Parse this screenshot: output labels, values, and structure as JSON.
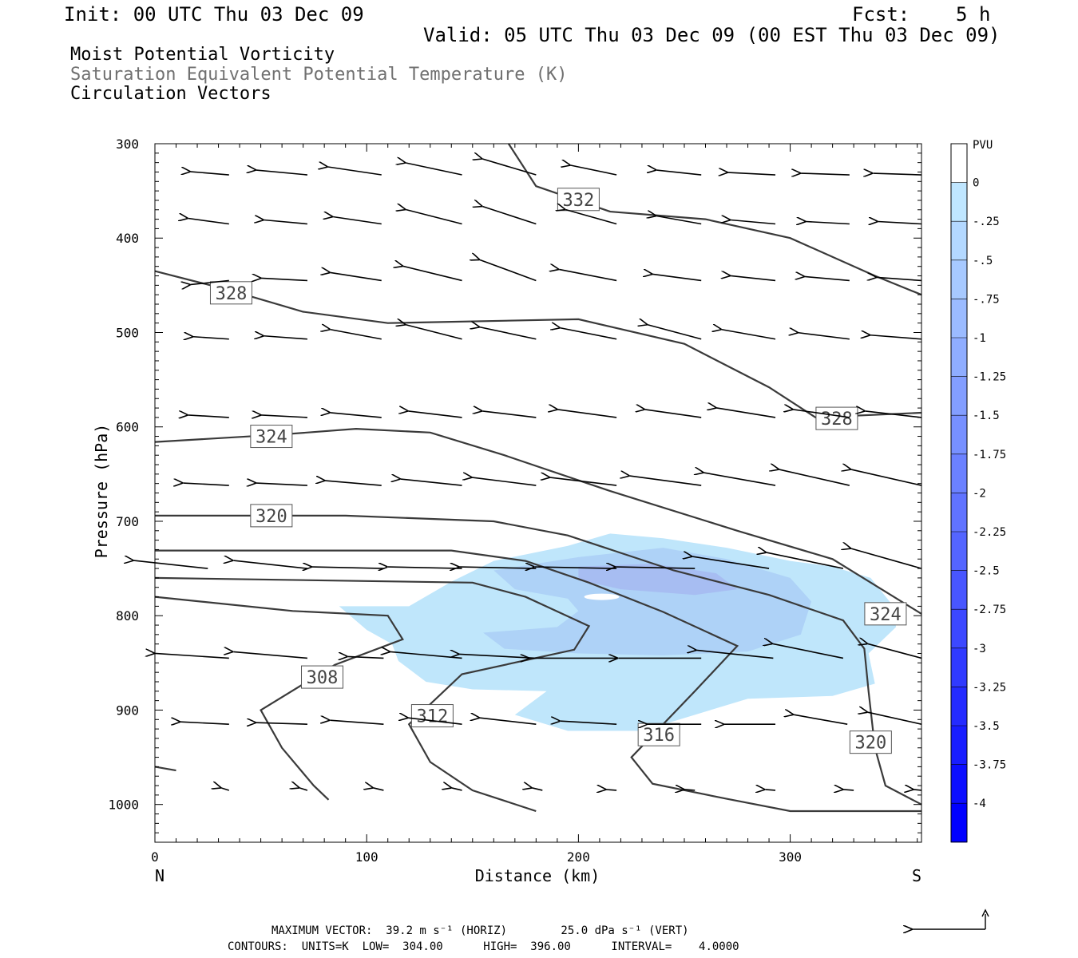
{
  "header": {
    "init": "Init: 00 UTC Thu 03 Dec 09",
    "fcst": "Fcst:    5 h",
    "valid": "Valid: 05 UTC Thu 03 Dec 09 (00 EST Thu 03 Dec 09)",
    "fields": [
      "Moist Potential Vorticity",
      "Saturation Equivalent Potential Temperature (K)",
      "Circulation Vectors"
    ]
  },
  "footer": {
    "line1": "MAXIMUM VECTOR:  39.2 m s⁻¹ (HORIZ)        25.0 dPa s⁻¹ (VERT)",
    "line2": "CONTOURS:  UNITS=K  LOW=  304.00      HIGH=  396.00      INTERVAL=    4.0000"
  },
  "chart_data": {
    "type": "cross-section",
    "xlabel": "Distance (km)",
    "ylabel": "Pressure (hPa)",
    "xlim": [
      0,
      362
    ],
    "ylim": [
      1040,
      300
    ],
    "x_ticks": [
      "0",
      "100",
      "200",
      "300"
    ],
    "y_ticks": [
      "300",
      "400",
      "500",
      "600",
      "700",
      "800",
      "900",
      "1000"
    ],
    "x_end_labels": {
      "left": "N",
      "right": "S"
    },
    "colorbar": {
      "unit": "PVU",
      "labels": [
        "0",
        "-.25",
        "-.5",
        "-.75",
        "-1",
        "-1.25",
        "-1.5",
        "-1.75",
        "-2",
        "-2.25",
        "-2.5",
        "-2.75",
        "-3",
        "-3.25",
        "-3.5",
        "-3.75",
        "-4"
      ]
    },
    "theta_contours": [
      {
        "label": "332",
        "points": [
          [
            167,
            300
          ],
          [
            180,
            345
          ],
          [
            215,
            372
          ],
          [
            260,
            380
          ],
          [
            300,
            400
          ],
          [
            340,
            440
          ],
          [
            362,
            460
          ]
        ]
      },
      {
        "label": "328",
        "points": [
          [
            0,
            435
          ],
          [
            35,
            455
          ],
          [
            70,
            478
          ],
          [
            110,
            490
          ],
          [
            200,
            486
          ],
          [
            250,
            512
          ],
          [
            290,
            558
          ],
          [
            312,
            590
          ],
          [
            362,
            585
          ]
        ]
      },
      {
        "label": "324",
        "points": [
          [
            0,
            616
          ],
          [
            60,
            608
          ],
          [
            95,
            602
          ],
          [
            130,
            606
          ],
          [
            165,
            630
          ],
          [
            215,
            668
          ],
          [
            275,
            710
          ],
          [
            320,
            740
          ],
          [
            362,
            798
          ]
        ]
      },
      {
        "label": "320",
        "points": [
          [
            0,
            694
          ],
          [
            90,
            694
          ],
          [
            160,
            700
          ],
          [
            195,
            715
          ],
          [
            245,
            752
          ],
          [
            290,
            778
          ],
          [
            325,
            805
          ],
          [
            335,
            835
          ],
          [
            337,
            880
          ],
          [
            340,
            940
          ],
          [
            345,
            980
          ],
          [
            362,
            1000
          ]
        ]
      },
      {
        "label": "316",
        "points": [
          [
            0,
            731
          ],
          [
            140,
            731
          ],
          [
            175,
            742
          ],
          [
            205,
            765
          ],
          [
            240,
            796
          ],
          [
            275,
            832
          ],
          [
            255,
            880
          ],
          [
            225,
            950
          ],
          [
            235,
            978
          ],
          [
            270,
            994
          ],
          [
            300,
            1007
          ],
          [
            362,
            1007
          ]
        ]
      },
      {
        "label": "312",
        "points": [
          [
            0,
            760
          ],
          [
            150,
            765
          ],
          [
            175,
            780
          ],
          [
            205,
            811
          ],
          [
            198,
            836
          ],
          [
            145,
            862
          ],
          [
            120,
            915
          ],
          [
            130,
            955
          ],
          [
            150,
            985
          ],
          [
            180,
            1007
          ]
        ]
      },
      {
        "label": "308",
        "points": [
          [
            0,
            780
          ],
          [
            65,
            795
          ],
          [
            110,
            800
          ],
          [
            117,
            825
          ],
          [
            85,
            852
          ],
          [
            50,
            900
          ],
          [
            60,
            940
          ],
          [
            75,
            980
          ],
          [
            82,
            995
          ]
        ]
      },
      {
        "label": "",
        "points": [
          [
            0,
            960
          ],
          [
            10,
            964
          ]
        ]
      }
    ],
    "vector_rows": [
      {
        "p": 333,
        "arrows": [
          [
            35,
            -30,
            4
          ],
          [
            72,
            -40,
            6
          ],
          [
            107,
            -42,
            10
          ],
          [
            145,
            -44,
            15
          ],
          [
            180,
            -42,
            20
          ],
          [
            218,
            -36,
            12
          ],
          [
            258,
            -35,
            6
          ],
          [
            293,
            -37,
            3
          ],
          [
            328,
            -38,
            2
          ],
          [
            362,
            -38,
            2
          ]
        ]
      },
      {
        "p": 385,
        "arrows": [
          [
            35,
            -32,
            7
          ],
          [
            72,
            -34,
            5
          ],
          [
            107,
            -38,
            9
          ],
          [
            145,
            -44,
            18
          ],
          [
            180,
            -42,
            22
          ],
          [
            218,
            -40,
            18
          ],
          [
            258,
            -35,
            10
          ],
          [
            293,
            -35,
            5
          ],
          [
            328,
            -34,
            3
          ],
          [
            362,
            -34,
            3
          ]
        ]
      },
      {
        "p": 445,
        "arrows": [
          [
            35,
            -30,
            -5
          ],
          [
            72,
            -36,
            3
          ],
          [
            107,
            -40,
            10
          ],
          [
            145,
            -46,
            18
          ],
          [
            180,
            -44,
            26
          ],
          [
            218,
            -45,
            14
          ],
          [
            258,
            -38,
            8
          ],
          [
            293,
            -35,
            6
          ],
          [
            328,
            -35,
            5
          ],
          [
            362,
            -35,
            4
          ]
        ]
      },
      {
        "p": 507,
        "arrows": [
          [
            35,
            -28,
            3
          ],
          [
            72,
            -34,
            4
          ],
          [
            107,
            -40,
            12
          ],
          [
            145,
            -44,
            18
          ],
          [
            180,
            -44,
            15
          ],
          [
            218,
            -44,
            14
          ],
          [
            258,
            -42,
            18
          ],
          [
            293,
            -42,
            12
          ],
          [
            328,
            -40,
            8
          ],
          [
            362,
            -40,
            5
          ]
        ]
      },
      {
        "p": 590,
        "arrows": [
          [
            35,
            -32,
            3
          ],
          [
            72,
            -36,
            3
          ],
          [
            107,
            -40,
            6
          ],
          [
            145,
            -42,
            8
          ],
          [
            180,
            -42,
            8
          ],
          [
            218,
            -46,
            10
          ],
          [
            258,
            -44,
            10
          ],
          [
            293,
            -46,
            12
          ],
          [
            328,
            -44,
            10
          ],
          [
            362,
            -44,
            8
          ]
        ]
      },
      {
        "p": 662,
        "arrows": [
          [
            35,
            -36,
            3
          ],
          [
            72,
            -40,
            3
          ],
          [
            107,
            -44,
            6
          ],
          [
            145,
            -48,
            8
          ],
          [
            180,
            -50,
            10
          ],
          [
            218,
            -52,
            10
          ],
          [
            258,
            -56,
            12
          ],
          [
            293,
            -56,
            16
          ],
          [
            328,
            -55,
            20
          ],
          [
            362,
            -55,
            20
          ]
        ]
      },
      {
        "p": 750,
        "arrows": [
          [
            25,
            -58,
            10
          ],
          [
            72,
            -58,
            10
          ],
          [
            108,
            -56,
            2
          ],
          [
            145,
            -58,
            2
          ],
          [
            180,
            -60,
            2
          ],
          [
            218,
            -64,
            2
          ],
          [
            255,
            -62,
            2
          ],
          [
            290,
            -60,
            15
          ],
          [
            325,
            -60,
            20
          ],
          [
            362,
            -55,
            25
          ]
        ]
      },
      {
        "p": 845,
        "arrows": [
          [
            35,
            -58,
            6
          ],
          [
            72,
            -58,
            8
          ],
          [
            108,
            -28,
            2
          ],
          [
            145,
            -56,
            8
          ],
          [
            180,
            -60,
            5
          ],
          [
            218,
            -68,
            0
          ],
          [
            258,
            -65,
            0
          ],
          [
            292,
            -60,
            10
          ],
          [
            325,
            -55,
            18
          ],
          [
            362,
            -42,
            18
          ]
        ]
      },
      {
        "p": 915,
        "arrows": [
          [
            35,
            -38,
            3
          ],
          [
            72,
            -40,
            2
          ],
          [
            108,
            -42,
            5
          ],
          [
            145,
            -42,
            8
          ],
          [
            180,
            -44,
            8
          ],
          [
            218,
            -44,
            4
          ],
          [
            258,
            -42,
            0
          ],
          [
            293,
            -40,
            0
          ],
          [
            327,
            -42,
            12
          ],
          [
            362,
            -42,
            15
          ]
        ]
      },
      {
        "p": 985,
        "arrows": [
          [
            35,
            -6,
            3
          ],
          [
            72,
            -6,
            3
          ],
          [
            108,
            -8,
            3
          ],
          [
            145,
            -8,
            3
          ],
          [
            183,
            -8,
            3
          ],
          [
            218,
            -8,
            1
          ],
          [
            255,
            -8,
            1
          ],
          [
            293,
            -8,
            1
          ],
          [
            330,
            -8,
            1
          ],
          [
            362,
            -6,
            1
          ]
        ]
      }
    ],
    "pv_regions": [
      {
        "level": -0.25,
        "points": [
          [
            87,
            790
          ],
          [
            120,
            790
          ],
          [
            140,
            764
          ],
          [
            160,
            742
          ],
          [
            195,
            726
          ],
          [
            215,
            713
          ],
          [
            240,
            718
          ],
          [
            270,
            728
          ],
          [
            300,
            742
          ],
          [
            320,
            748
          ],
          [
            338,
            760
          ],
          [
            348,
            788
          ],
          [
            350,
            812
          ],
          [
            337,
            840
          ],
          [
            340,
            872
          ],
          [
            320,
            885
          ],
          [
            280,
            888
          ],
          [
            255,
            905
          ],
          [
            230,
            922
          ],
          [
            195,
            922
          ],
          [
            170,
            905
          ],
          [
            185,
            880
          ],
          [
            150,
            878
          ],
          [
            128,
            870
          ],
          [
            115,
            848
          ],
          [
            112,
            830
          ],
          [
            100,
            815
          ]
        ]
      },
      {
        "level": -0.5,
        "points": [
          [
            160,
            752
          ],
          [
            200,
            738
          ],
          [
            240,
            728
          ],
          [
            270,
            740
          ],
          [
            300,
            760
          ],
          [
            310,
            785
          ],
          [
            305,
            820
          ],
          [
            280,
            838
          ],
          [
            240,
            842
          ],
          [
            200,
            840
          ],
          [
            165,
            835
          ],
          [
            155,
            818
          ],
          [
            190,
            812
          ],
          [
            200,
            795
          ],
          [
            195,
            782
          ],
          [
            170,
            772
          ]
        ]
      },
      {
        "level": -0.75,
        "points": [
          [
            200,
            748
          ],
          [
            235,
            745
          ],
          [
            265,
            755
          ],
          [
            275,
            772
          ],
          [
            255,
            778
          ],
          [
            220,
            772
          ],
          [
            200,
            762
          ]
        ]
      }
    ]
  }
}
